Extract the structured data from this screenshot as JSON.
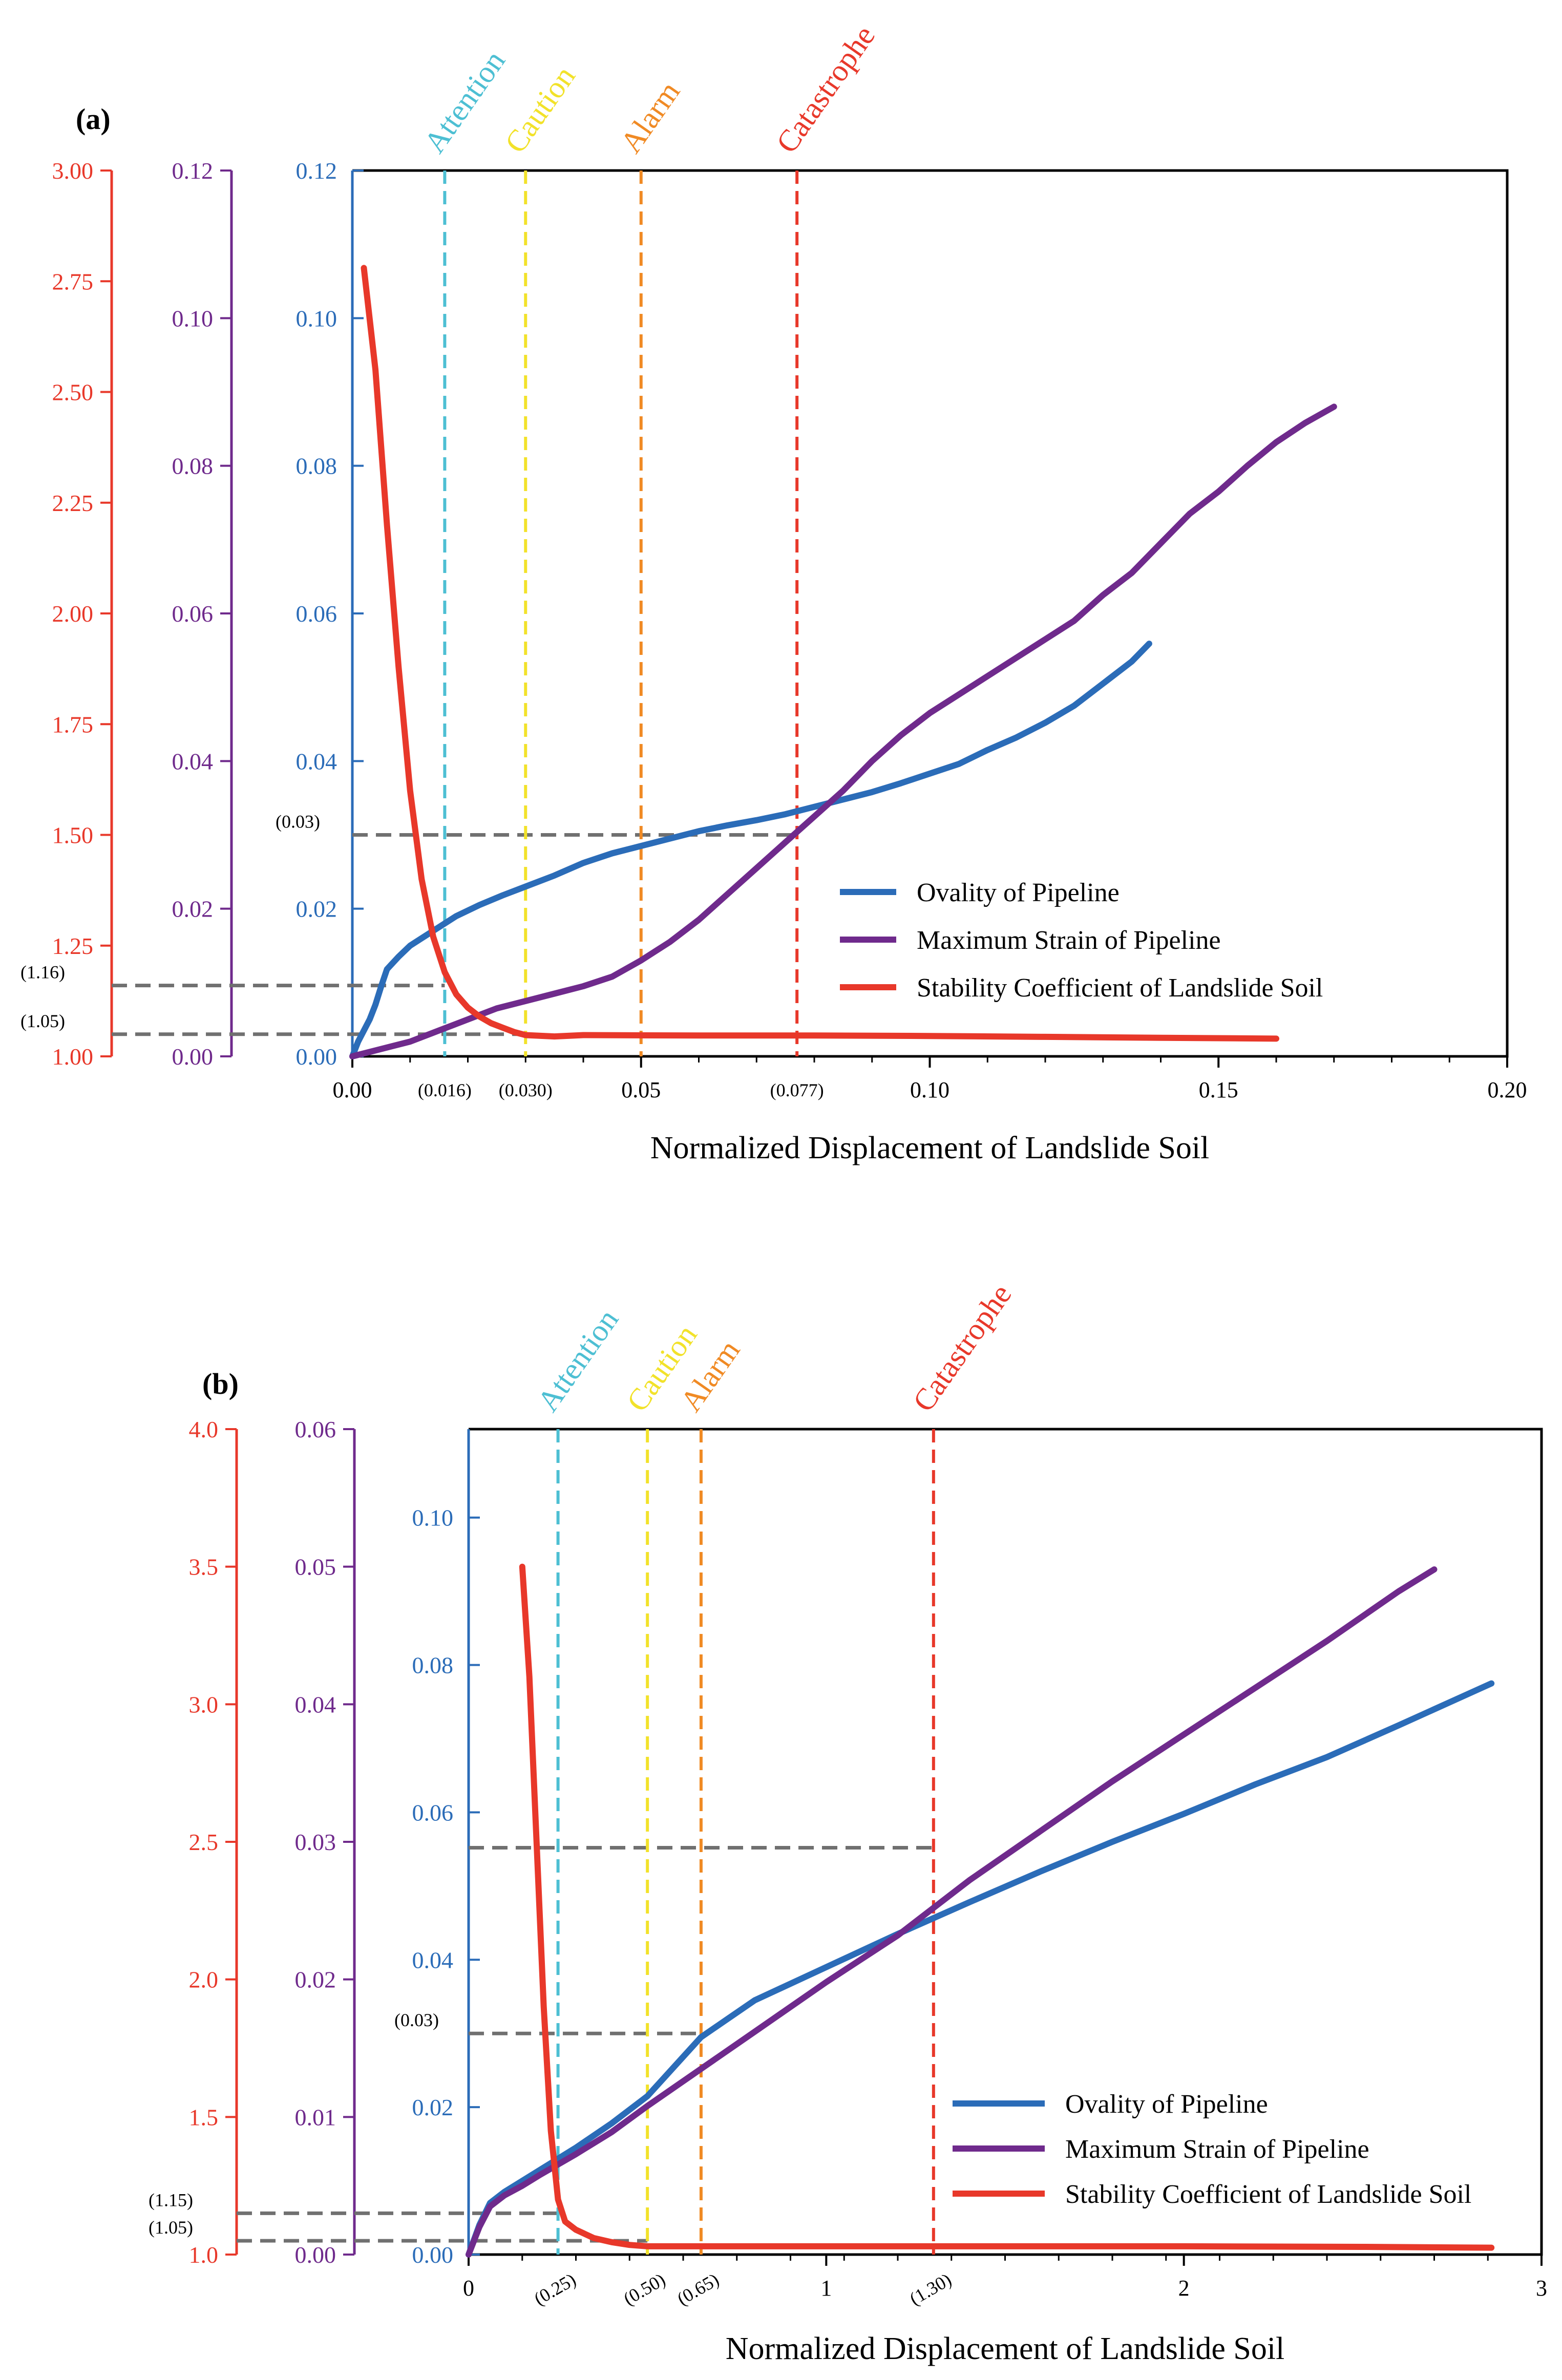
{
  "chart_data": [
    {
      "panel": "(a)",
      "type": "line",
      "xlabel": "Normalized Displacement of Landslide Soil",
      "xlim": [
        0,
        0.2
      ],
      "x_ticks": [
        "0.00",
        "0.05",
        "0.10",
        "0.15",
        "0.20"
      ],
      "x_ticks_values": [
        0,
        0.05,
        0.1,
        0.15,
        0.2
      ],
      "x_marks": [
        {
          "x": 0.016,
          "label": "(0.016)"
        },
        {
          "x": 0.03,
          "label": "(0.030)"
        },
        {
          "x": 0.077,
          "label": "(0.077)"
        }
      ],
      "axes": {
        "stability": {
          "lim": [
            1.0,
            3.0
          ],
          "ticks": [
            "1.00",
            "1.25",
            "1.50",
            "1.75",
            "2.00",
            "2.25",
            "2.50",
            "2.75",
            "3.00"
          ],
          "values": [
            1.0,
            1.25,
            1.5,
            1.75,
            2.0,
            2.25,
            2.5,
            2.75,
            3.0
          ],
          "color": "#e8382a"
        },
        "strain": {
          "lim": [
            0,
            0.12
          ],
          "ticks": [
            "0.00",
            "0.02",
            "0.04",
            "0.06",
            "0.08",
            "0.10",
            "0.12"
          ],
          "values": [
            0,
            0.02,
            0.04,
            0.06,
            0.08,
            0.1,
            0.12
          ],
          "color": "#6f2a8c"
        },
        "ovality": {
          "lim": [
            0,
            0.12
          ],
          "ticks": [
            "0.00",
            "0.02",
            "0.04",
            "0.06",
            "0.08",
            "0.10",
            "0.12"
          ],
          "values": [
            0,
            0.02,
            0.04,
            0.06,
            0.08,
            0.1,
            0.12
          ],
          "color": "#2b6cb8"
        }
      },
      "thresholds": [
        {
          "label": "Attention",
          "x": 0.016,
          "color": "#4dbfd3"
        },
        {
          "label": "Caution",
          "x": 0.03,
          "color": "#f2e22a"
        },
        {
          "label": "Alarm",
          "x": 0.05,
          "color": "#f08a24"
        },
        {
          "label": "Catastrophe",
          "x": 0.077,
          "color": "#e8382a"
        }
      ],
      "h_refs": [
        {
          "axis": "ovality",
          "y": 0.03,
          "label": "(0.03)",
          "x_end": 0.077
        },
        {
          "axis": "stability",
          "y": 1.16,
          "label": "(1.16)",
          "x_end": 0.016
        },
        {
          "axis": "stability",
          "y": 1.05,
          "label": "(1.05)",
          "x_end": 0.03
        }
      ],
      "series": [
        {
          "name": "Ovality of Pipeline",
          "axis": "ovality",
          "color": "#2b6cb8",
          "x": [
            0,
            0.001,
            0.003,
            0.004,
            0.005,
            0.006,
            0.008,
            0.01,
            0.012,
            0.015,
            0.018,
            0.022,
            0.026,
            0.03,
            0.035,
            0.04,
            0.045,
            0.05,
            0.055,
            0.06,
            0.065,
            0.07,
            0.075,
            0.08,
            0.085,
            0.09,
            0.095,
            0.1,
            0.105,
            0.11,
            0.115,
            0.12,
            0.125,
            0.13,
            0.135,
            0.138
          ],
          "y": [
            0,
            0.002,
            0.005,
            0.007,
            0.0095,
            0.0118,
            0.0135,
            0.015,
            0.016,
            0.0175,
            0.019,
            0.0205,
            0.0218,
            0.023,
            0.0245,
            0.0262,
            0.0275,
            0.0285,
            0.0295,
            0.0305,
            0.0313,
            0.032,
            0.0328,
            0.0338,
            0.0348,
            0.0358,
            0.037,
            0.0383,
            0.0396,
            0.0415,
            0.0432,
            0.0452,
            0.0475,
            0.0505,
            0.0535,
            0.0559
          ]
        },
        {
          "name": "Maximum Strain of Pipeline",
          "axis": "strain",
          "color": "#6f2a8c",
          "x": [
            0,
            0.005,
            0.01,
            0.015,
            0.02,
            0.025,
            0.03,
            0.035,
            0.04,
            0.045,
            0.05,
            0.055,
            0.06,
            0.065,
            0.07,
            0.075,
            0.08,
            0.085,
            0.09,
            0.095,
            0.1,
            0.105,
            0.11,
            0.115,
            0.12,
            0.125,
            0.13,
            0.135,
            0.14,
            0.145,
            0.15,
            0.155,
            0.16,
            0.165,
            0.17
          ],
          "y": [
            0,
            0.001,
            0.002,
            0.0035,
            0.005,
            0.0065,
            0.0075,
            0.0085,
            0.0095,
            0.0108,
            0.013,
            0.0155,
            0.0185,
            0.022,
            0.0255,
            0.029,
            0.0325,
            0.036,
            0.04,
            0.0435,
            0.0465,
            0.049,
            0.0515,
            0.054,
            0.0565,
            0.059,
            0.0625,
            0.0655,
            0.0695,
            0.0735,
            0.0765,
            0.08,
            0.0832,
            0.0858,
            0.088
          ]
        },
        {
          "name": "Stability Coefficient of Landslide Soil",
          "axis": "stability",
          "color": "#e8382a",
          "x": [
            0.002,
            0.004,
            0.006,
            0.008,
            0.01,
            0.012,
            0.014,
            0.016,
            0.018,
            0.02,
            0.022,
            0.024,
            0.026,
            0.028,
            0.03,
            0.035,
            0.04,
            0.06,
            0.08,
            0.1,
            0.12,
            0.14,
            0.16
          ],
          "y": [
            2.78,
            2.55,
            2.2,
            1.88,
            1.6,
            1.4,
            1.27,
            1.19,
            1.14,
            1.11,
            1.09,
            1.075,
            1.065,
            1.055,
            1.048,
            1.045,
            1.048,
            1.047,
            1.047,
            1.046,
            1.044,
            1.042,
            1.04
          ]
        }
      ]
    },
    {
      "panel": "(b)",
      "type": "line",
      "xlabel": "Normalized Displacement of Landslide Soil",
      "xlim": [
        0,
        3
      ],
      "x_ticks": [
        "0",
        "1",
        "2",
        "3"
      ],
      "x_ticks_values": [
        0,
        1,
        2,
        3
      ],
      "x_marks": [
        {
          "x": 0.25,
          "label": "(0.25)"
        },
        {
          "x": 0.5,
          "label": "(0.50)"
        },
        {
          "x": 0.65,
          "label": "(0.65)"
        },
        {
          "x": 1.3,
          "label": "(1.30)"
        }
      ],
      "axes": {
        "stability": {
          "lim": [
            1.0,
            4.0
          ],
          "ticks": [
            "1.0",
            "1.5",
            "2.0",
            "2.5",
            "3.0",
            "3.5",
            "4.0"
          ],
          "values": [
            1.0,
            1.5,
            2.0,
            2.5,
            3.0,
            3.5,
            4.0
          ],
          "color": "#e8382a"
        },
        "strain": {
          "lim": [
            0,
            0.06
          ],
          "ticks": [
            "0.00",
            "0.01",
            "0.02",
            "0.03",
            "0.04",
            "0.05",
            "0.06"
          ],
          "values": [
            0,
            0.01,
            0.02,
            0.03,
            0.04,
            0.05,
            0.06
          ],
          "color": "#6f2a8c"
        },
        "ovality": {
          "lim": [
            0,
            0.112
          ],
          "ticks": [
            "0.00",
            "0.02",
            "0.04",
            "0.06",
            "0.08",
            "0.10"
          ],
          "values": [
            0,
            0.02,
            0.04,
            0.06,
            0.08,
            0.1
          ],
          "color": "#2b6cb8"
        }
      },
      "thresholds": [
        {
          "label": "Attention",
          "x": 0.25,
          "color": "#4dbfd3"
        },
        {
          "label": "Caution",
          "x": 0.5,
          "color": "#f2e22a"
        },
        {
          "label": "Alarm",
          "x": 0.65,
          "color": "#f08a24"
        },
        {
          "label": "Catastrophe",
          "x": 1.3,
          "color": "#e8382a"
        }
      ],
      "h_refs": [
        {
          "axis": "ovality",
          "y": 0.0552,
          "label": "",
          "x_end": 1.3
        },
        {
          "axis": "ovality",
          "y": 0.03,
          "label": "(0.03)",
          "x_end": 0.65
        },
        {
          "axis": "stability",
          "y": 1.15,
          "label": "(1.15)",
          "x_end": 0.25
        },
        {
          "axis": "stability",
          "y": 1.05,
          "label": "(1.05)",
          "x_end": 0.5
        }
      ],
      "series": [
        {
          "name": "Ovality of Pipeline",
          "axis": "ovality",
          "color": "#2b6cb8",
          "x": [
            0,
            0.03,
            0.06,
            0.1,
            0.15,
            0.2,
            0.3,
            0.4,
            0.5,
            0.65,
            0.8,
            1.0,
            1.2,
            1.4,
            1.6,
            1.8,
            2.0,
            2.2,
            2.4,
            2.6,
            2.86
          ],
          "y": [
            0,
            0.004,
            0.007,
            0.0085,
            0.01,
            0.0115,
            0.0145,
            0.0178,
            0.0215,
            0.0295,
            0.0345,
            0.039,
            0.0435,
            0.0478,
            0.052,
            0.056,
            0.0598,
            0.0638,
            0.0675,
            0.0718,
            0.0775
          ]
        },
        {
          "name": "Maximum Strain of Pipeline",
          "axis": "strain",
          "color": "#6f2a8c",
          "x": [
            0,
            0.03,
            0.06,
            0.1,
            0.15,
            0.2,
            0.3,
            0.4,
            0.5,
            0.65,
            0.8,
            1.0,
            1.2,
            1.4,
            1.6,
            1.8,
            2.0,
            2.2,
            2.4,
            2.6,
            2.7
          ],
          "y": [
            0,
            0.002,
            0.0035,
            0.0043,
            0.005,
            0.0058,
            0.0073,
            0.0089,
            0.0108,
            0.0135,
            0.0162,
            0.0198,
            0.0232,
            0.0272,
            0.0308,
            0.0344,
            0.0378,
            0.0412,
            0.0446,
            0.0482,
            0.0498
          ]
        },
        {
          "name": "Stability Coefficient of Landslide Soil",
          "axis": "stability",
          "color": "#e8382a",
          "x": [
            0.15,
            0.17,
            0.19,
            0.21,
            0.23,
            0.25,
            0.27,
            0.3,
            0.35,
            0.4,
            0.45,
            0.5,
            0.6,
            1.0,
            1.5,
            2.0,
            2.5,
            2.86
          ],
          "y": [
            3.5,
            3.1,
            2.5,
            1.9,
            1.45,
            1.2,
            1.12,
            1.09,
            1.06,
            1.045,
            1.035,
            1.03,
            1.03,
            1.03,
            1.03,
            1.03,
            1.028,
            1.025
          ]
        }
      ]
    }
  ],
  "labels": {
    "panel_a": "(a)",
    "panel_b": "(b)"
  }
}
